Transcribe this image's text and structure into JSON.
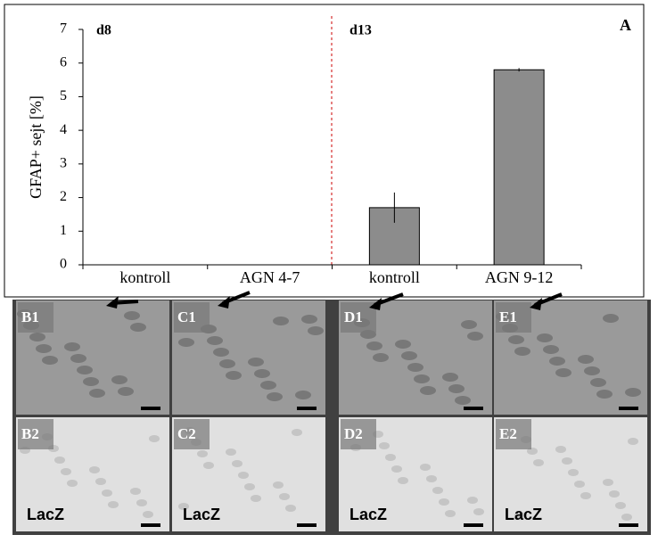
{
  "chart_data": {
    "type": "bar",
    "ylabel": "GFAP+ sejt [%]",
    "categories": [
      "kontroll",
      "AGN 4-7",
      "kontroll",
      "AGN 9-12"
    ],
    "values": [
      0,
      0,
      1.7,
      5.8
    ],
    "errors": [
      0,
      0,
      0.45,
      0.05
    ],
    "color": "#8c8c8c",
    "ylim": [
      0,
      7
    ],
    "yticks": [
      0,
      1,
      2,
      3,
      4,
      5,
      6,
      7
    ],
    "annotations": [
      "d8",
      "d13",
      "A"
    ]
  },
  "panels": [
    {
      "label": "B1"
    },
    {
      "label": "C1"
    },
    {
      "label": "D1"
    },
    {
      "label": "E1"
    },
    {
      "label": "B2",
      "stain": "LacZ"
    },
    {
      "label": "C2",
      "stain": "LacZ"
    },
    {
      "label": "D2",
      "stain": "LacZ"
    },
    {
      "label": "E2",
      "stain": "LacZ"
    }
  ]
}
